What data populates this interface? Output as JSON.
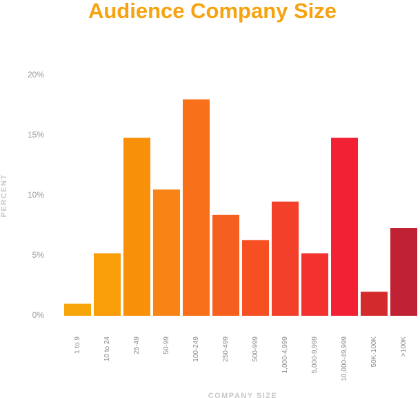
{
  "chart_data": {
    "type": "bar",
    "title": "Audience Company Size",
    "xlabel": "COMPANY SIZE",
    "ylabel": "PERCENT",
    "categories": [
      "1 to 9",
      "10 to 24",
      "25-49",
      "50-99",
      "100-249",
      "250-499",
      "500-999",
      "1,000-4,999",
      "5,000-9,999",
      "10,000-49,999",
      "50K-100K",
      ">100K"
    ],
    "values": [
      1.0,
      5.2,
      14.8,
      10.5,
      18.0,
      8.4,
      6.3,
      9.5,
      5.2,
      14.8,
      2.0,
      7.3
    ],
    "colors": [
      "#F8A50C",
      "#F99D08",
      "#F99009",
      "#F98314",
      "#F9701B",
      "#F6601F",
      "#F54F22",
      "#F3402A",
      "#F33230",
      "#F32134",
      "#D32B2C",
      "#C02133"
    ],
    "yticks": [
      "0%",
      "5%",
      "10%",
      "15%",
      "20%"
    ],
    "ylim": [
      0,
      20
    ],
    "grid": false,
    "legend": "none"
  }
}
